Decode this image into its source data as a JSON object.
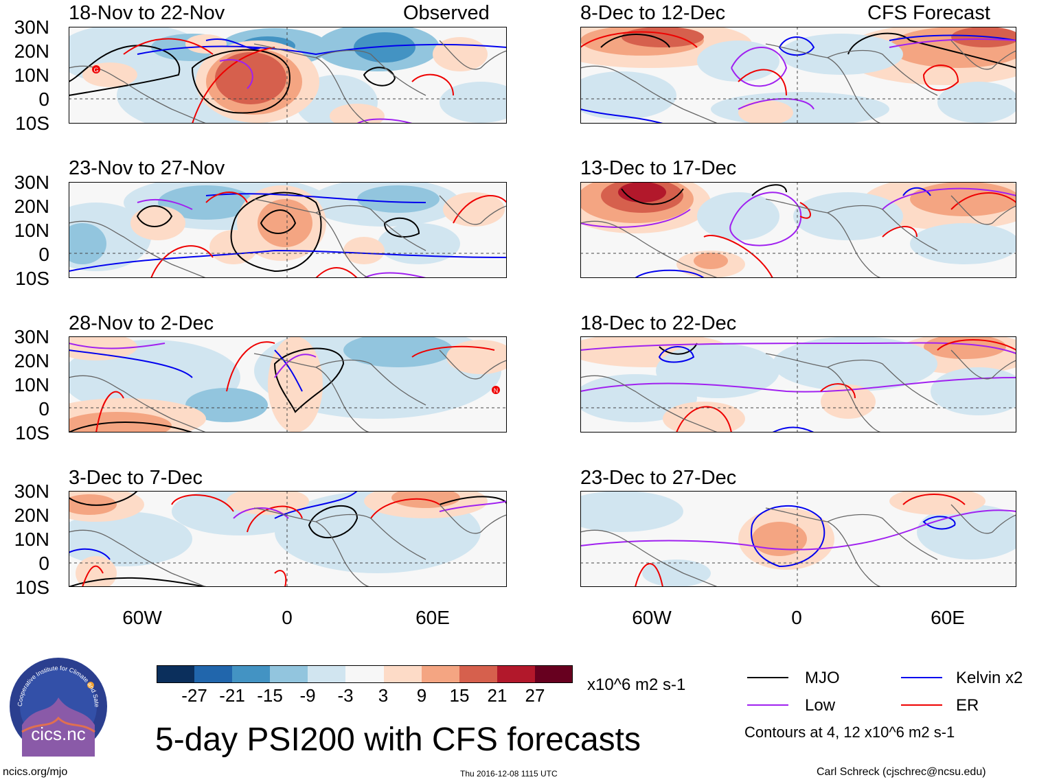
{
  "header": {
    "observed_label": "Observed",
    "forecast_label": "CFS Forecast"
  },
  "lat_labels": [
    "30N",
    "20N",
    "10N",
    "0",
    "10S"
  ],
  "lon_labels": [
    "60W",
    "0",
    "60E"
  ],
  "panels": [
    {
      "id": "p1",
      "title": "18-Nov to 22-Nov"
    },
    {
      "id": "p2",
      "title": "23-Nov to 27-Nov"
    },
    {
      "id": "p3",
      "title": "28-Nov to 2-Dec"
    },
    {
      "id": "p4",
      "title": "3-Dec to 7-Dec"
    },
    {
      "id": "p5",
      "title": "8-Dec to 12-Dec"
    },
    {
      "id": "p6",
      "title": "13-Dec to 17-Dec"
    },
    {
      "id": "p7",
      "title": "18-Dec to 22-Dec"
    },
    {
      "id": "p8",
      "title": "23-Dec to 27-Dec"
    }
  ],
  "colorbar": {
    "ticks": [
      "-27",
      "-21",
      "-15",
      "-9",
      "-3",
      "3",
      "9",
      "15",
      "21",
      "27"
    ],
    "colors": [
      "#0b2f5c",
      "#2166ac",
      "#4393c3",
      "#92c5de",
      "#d1e5f0",
      "#f7f7f7",
      "#fddbc7",
      "#f4a582",
      "#d6604d",
      "#b2182b",
      "#67001f"
    ],
    "units": "x10^6 m2 s-1"
  },
  "legend": {
    "items": [
      {
        "label": "MJO",
        "color": "#000000"
      },
      {
        "label": "Kelvin x2",
        "color": "#0000ee"
      },
      {
        "label": "Low",
        "color": "#a020f0"
      },
      {
        "label": "ER",
        "color": "#ee0000"
      }
    ],
    "note": "Contours at 4, 12 x10^6 m2 s-1"
  },
  "title": "5-day PSI200 with CFS forecasts",
  "footer": {
    "url": "ncics.org/mjo",
    "timestamp": "Thu 2016-12-08 1115 UTC",
    "author": "Carl Schreck (cjschrec@ncsu.edu)"
  },
  "logo": {
    "text": "cics.nc",
    "ring_text": "Cooperative Institute for Climate and Satellites"
  },
  "storm_markers": [
    "G",
    "N"
  ]
}
